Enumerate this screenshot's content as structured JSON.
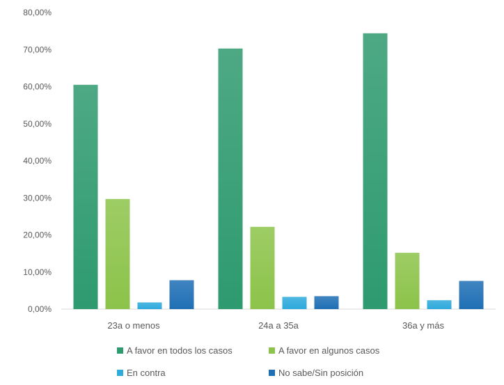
{
  "chart_data": {
    "type": "bar",
    "categories": [
      "23a o menos",
      "24a a 35a",
      "36a y más"
    ],
    "series": [
      {
        "name": "A favor en todos los casos",
        "values": [
          60.5,
          70.3,
          74.4
        ],
        "color": "#2e9a6f"
      },
      {
        "name": "A favor en algunos casos",
        "values": [
          29.7,
          22.2,
          15.2
        ],
        "color": "#8cc34a"
      },
      {
        "name": "En contra",
        "values": [
          1.8,
          3.3,
          2.4
        ],
        "color": "#2eaadc"
      },
      {
        "name": "No sabe/Sin posición",
        "values": [
          7.8,
          3.5,
          7.6
        ],
        "color": "#1f6fb5"
      }
    ],
    "ylim": [
      0,
      80
    ],
    "ytick_labels": [
      "0,00%",
      "10,00%",
      "20,00%",
      "30,00%",
      "40,00%",
      "50,00%",
      "60,00%",
      "70,00%",
      "80,00%"
    ],
    "grid": false,
    "legend_position": "bottom"
  }
}
